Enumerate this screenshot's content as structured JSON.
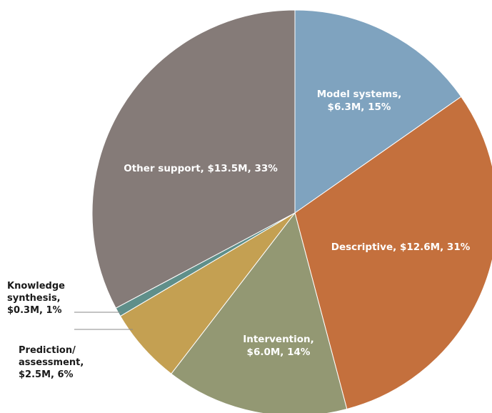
{
  "chart_data": {
    "type": "pie",
    "slices": [
      {
        "label": [
          "Model systems,",
          "$6.3M, 15%"
        ],
        "value": 6.3,
        "percent": 15,
        "color": "#7fa3bf"
      },
      {
        "label": [
          "Descriptive, $12.6M, 31%"
        ],
        "value": 12.6,
        "percent": 31,
        "color": "#c4703d"
      },
      {
        "label": [
          "Intervention,",
          "$6.0M, 14%"
        ],
        "value": 6.0,
        "percent": 14,
        "color": "#939873"
      },
      {
        "label": [
          "Prediction/",
          "assessment,",
          "$2.5M, 6%"
        ],
        "value": 2.5,
        "percent": 6,
        "color": "#c4a052"
      },
      {
        "label": [
          "Knowledge",
          "synthesis,",
          "$0.3M, 1%"
        ],
        "value": 0.3,
        "percent": 1,
        "color": "#5f8f8a"
      },
      {
        "label": [
          "Other support, $13.5M, 33%"
        ],
        "value": 13.5,
        "percent": 33,
        "color": "#857b78"
      }
    ],
    "start_angle": "top",
    "direction": "clockwise",
    "legend": "none"
  }
}
